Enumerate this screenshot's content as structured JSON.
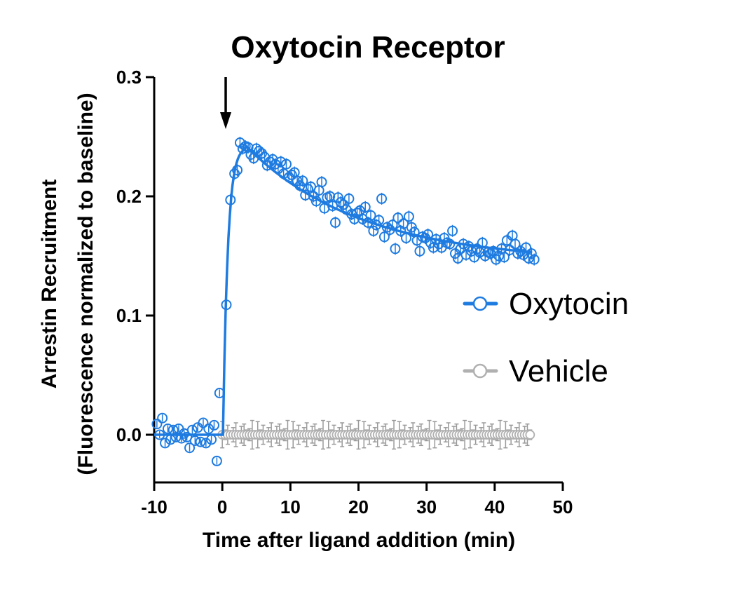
{
  "chart_data": {
    "type": "scatter",
    "title": "Oxytocin Receptor",
    "xlabel": "Time after ligand addition (min)",
    "ylabel_line1": "Arrestin Recruitment",
    "ylabel_line2": "(Fluorescence normalized to baseline)",
    "xlim": [
      -10,
      50
    ],
    "ylim": [
      -0.04,
      0.3
    ],
    "xticks": [
      -10,
      0,
      10,
      20,
      30,
      40,
      50
    ],
    "xtick_labels": [
      "-10",
      "0",
      "10",
      "20",
      "30",
      "40",
      "50"
    ],
    "yticks": [
      0.0,
      0.1,
      0.2,
      0.3
    ],
    "ytick_labels": [
      "0.0",
      "0.1",
      "0.2",
      "0.3"
    ],
    "annotation": {
      "type": "arrow",
      "x": 0.5,
      "note": "ligand addition"
    },
    "legend_position": "right",
    "series": [
      {
        "name": "Oxytocin",
        "color": "#1e7be0",
        "marker": "open-circle",
        "fit_line": true,
        "points": [
          [
            -9.6,
            0.009
          ],
          [
            -9.2,
            0.0
          ],
          [
            -8.8,
            0.014
          ],
          [
            -8.4,
            -0.007
          ],
          [
            -8.0,
            0.005
          ],
          [
            -7.6,
            -0.004
          ],
          [
            -7.2,
            0.004
          ],
          [
            -6.8,
            -0.002
          ],
          [
            -6.4,
            0.005
          ],
          [
            -6.0,
            -0.003
          ],
          [
            -5.6,
            0.001
          ],
          [
            -5.2,
            -0.002
          ],
          [
            -4.8,
            -0.011
          ],
          [
            -4.4,
            0.004
          ],
          [
            -4.0,
            -0.005
          ],
          [
            -3.6,
            0.006
          ],
          [
            -3.2,
            -0.006
          ],
          [
            -2.8,
            0.01
          ],
          [
            -2.4,
            -0.007
          ],
          [
            -2.0,
            0.005
          ],
          [
            -1.6,
            -0.004
          ],
          [
            -1.2,
            0.008
          ],
          [
            -0.8,
            -0.022
          ],
          [
            -0.4,
            0.035
          ],
          [
            0.6,
            0.109
          ],
          [
            1.2,
            0.197
          ],
          [
            1.8,
            0.219
          ],
          [
            2.2,
            0.222
          ],
          [
            2.6,
            0.245
          ],
          [
            3.0,
            0.24
          ],
          [
            3.4,
            0.242
          ],
          [
            3.8,
            0.241
          ],
          [
            4.2,
            0.235
          ],
          [
            4.6,
            0.232
          ],
          [
            5.0,
            0.24
          ],
          [
            5.4,
            0.238
          ],
          [
            5.8,
            0.236
          ],
          [
            6.2,
            0.233
          ],
          [
            6.6,
            0.226
          ],
          [
            7.0,
            0.229
          ],
          [
            7.4,
            0.231
          ],
          [
            7.8,
            0.227
          ],
          [
            8.2,
            0.223
          ],
          [
            8.6,
            0.229
          ],
          [
            9.0,
            0.219
          ],
          [
            9.4,
            0.227
          ],
          [
            9.8,
            0.216
          ],
          [
            10.2,
            0.218
          ],
          [
            10.6,
            0.22
          ],
          [
            11.0,
            0.213
          ],
          [
            11.4,
            0.209
          ],
          [
            11.8,
            0.213
          ],
          [
            12.2,
            0.201
          ],
          [
            12.6,
            0.206
          ],
          [
            13.0,
            0.208
          ],
          [
            13.4,
            0.2
          ],
          [
            13.8,
            0.196
          ],
          [
            14.2,
            0.205
          ],
          [
            14.6,
            0.212
          ],
          [
            15.0,
            0.19
          ],
          [
            15.4,
            0.199
          ],
          [
            15.8,
            0.2
          ],
          [
            16.2,
            0.192
          ],
          [
            16.6,
            0.178
          ],
          [
            17.0,
            0.199
          ],
          [
            17.4,
            0.195
          ],
          [
            17.8,
            0.193
          ],
          [
            18.2,
            0.189
          ],
          [
            18.6,
            0.198
          ],
          [
            19.0,
            0.185
          ],
          [
            19.4,
            0.181
          ],
          [
            19.8,
            0.186
          ],
          [
            20.2,
            0.188
          ],
          [
            20.6,
            0.181
          ],
          [
            21.0,
            0.191
          ],
          [
            21.4,
            0.178
          ],
          [
            21.8,
            0.184
          ],
          [
            22.2,
            0.171
          ],
          [
            22.6,
            0.176
          ],
          [
            23.0,
            0.18
          ],
          [
            23.4,
            0.198
          ],
          [
            23.8,
            0.166
          ],
          [
            24.2,
            0.174
          ],
          [
            24.6,
            0.172
          ],
          [
            25.0,
            0.176
          ],
          [
            25.4,
            0.156
          ],
          [
            25.8,
            0.182
          ],
          [
            26.2,
            0.171
          ],
          [
            26.6,
            0.177
          ],
          [
            27.0,
            0.165
          ],
          [
            27.4,
            0.183
          ],
          [
            27.8,
            0.174
          ],
          [
            28.2,
            0.17
          ],
          [
            28.6,
            0.163
          ],
          [
            29.0,
            0.154
          ],
          [
            29.4,
            0.166
          ],
          [
            29.8,
            0.165
          ],
          [
            30.2,
            0.168
          ],
          [
            30.6,
            0.161
          ],
          [
            31.0,
            0.157
          ],
          [
            31.4,
            0.164
          ],
          [
            31.8,
            0.16
          ],
          [
            32.2,
            0.157
          ],
          [
            32.6,
            0.165
          ],
          [
            33.0,
            0.161
          ],
          [
            33.4,
            0.16
          ],
          [
            33.8,
            0.171
          ],
          [
            34.2,
            0.152
          ],
          [
            34.6,
            0.148
          ],
          [
            35.0,
            0.156
          ],
          [
            35.4,
            0.16
          ],
          [
            35.8,
            0.151
          ],
          [
            36.2,
            0.158
          ],
          [
            36.6,
            0.154
          ],
          [
            37.0,
            0.149
          ],
          [
            37.4,
            0.156
          ],
          [
            37.8,
            0.153
          ],
          [
            38.2,
            0.161
          ],
          [
            38.6,
            0.15
          ],
          [
            39.0,
            0.153
          ],
          [
            39.4,
            0.152
          ],
          [
            39.8,
            0.154
          ],
          [
            40.2,
            0.147
          ],
          [
            40.6,
            0.15
          ],
          [
            41.0,
            0.156
          ],
          [
            41.4,
            0.149
          ],
          [
            41.8,
            0.163
          ],
          [
            42.2,
            0.155
          ],
          [
            42.6,
            0.167
          ],
          [
            43.0,
            0.16
          ],
          [
            43.4,
            0.152
          ],
          [
            43.8,
            0.154
          ],
          [
            44.2,
            0.151
          ],
          [
            44.6,
            0.157
          ],
          [
            45.0,
            0.148
          ],
          [
            45.4,
            0.152
          ],
          [
            45.8,
            0.147
          ]
        ]
      },
      {
        "name": "Vehicle",
        "color": "#b0b0b0",
        "marker": "open-circle",
        "fit_line": true,
        "points_description_x": [
          0,
          45.5
        ],
        "points_step": 0.4,
        "points_value": 0.0
      }
    ]
  }
}
